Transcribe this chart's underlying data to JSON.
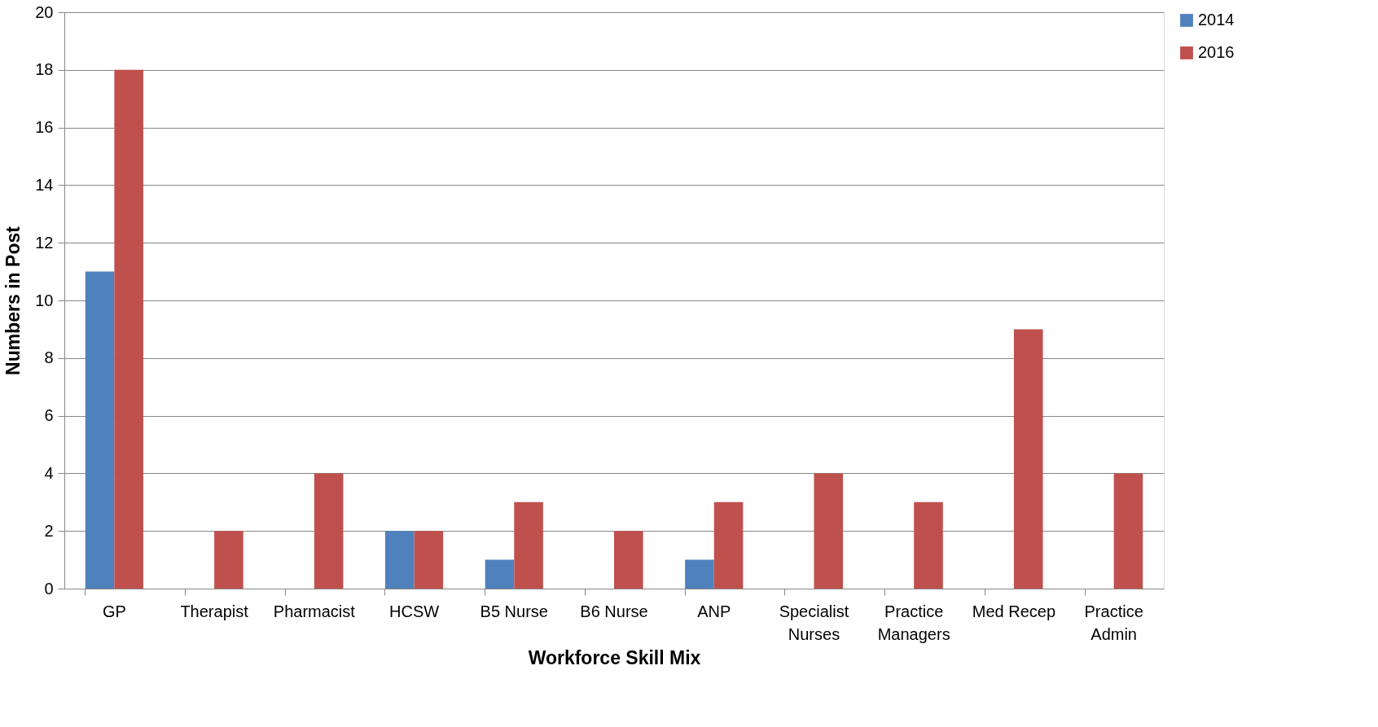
{
  "chart_data": {
    "type": "bar",
    "xlabel": "Workforce Skill Mix",
    "ylabel": "Numbers in Post",
    "categories": [
      "GP",
      "Therapist",
      "Pharmacist",
      "HCSW",
      "B5 Nurse",
      "B6 Nurse",
      "ANP",
      "Specialist Nurses",
      "Practice Managers",
      "Med Recep",
      "Practice Admin"
    ],
    "series": [
      {
        "name": "2014",
        "color": "#4f81bd",
        "values": [
          11,
          0,
          0,
          2,
          1,
          0,
          1,
          0,
          0,
          0,
          0
        ]
      },
      {
        "name": "2016",
        "color": "#c0504d",
        "values": [
          18,
          2,
          4,
          2,
          3,
          2,
          3,
          4,
          3,
          9,
          4
        ]
      }
    ],
    "ylim": [
      0,
      20
    ],
    "yticks": [
      0,
      2,
      4,
      6,
      8,
      10,
      12,
      14,
      16,
      18,
      20
    ],
    "grid": "y",
    "legend": "right"
  }
}
